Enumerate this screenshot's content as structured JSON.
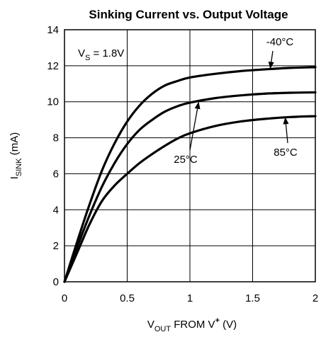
{
  "chart_data": {
    "type": "line",
    "title": "Sinking Current vs. Output Voltage",
    "xlabel": {
      "main": "V",
      "sub": "OUT",
      "rest": " FROM V",
      "sup": "+",
      "unit": " (V)"
    },
    "ylabel": {
      "main": "I",
      "sub": "SINK",
      "unit": " (mA)"
    },
    "xlim": [
      0,
      2
    ],
    "ylim": [
      0,
      14
    ],
    "xticks": [
      0,
      0.5,
      1,
      1.5,
      2
    ],
    "xtick_labels": [
      "0",
      "0.5",
      "1",
      "1.5",
      "2"
    ],
    "yticks": [
      0,
      2,
      4,
      6,
      8,
      10,
      12,
      14
    ],
    "ytick_labels": [
      "0",
      "2",
      "4",
      "6",
      "8",
      "10",
      "12",
      "14"
    ],
    "grid": true,
    "condition": {
      "main": "V",
      "sub": "S",
      "rest": " = 1.8V"
    },
    "series": [
      {
        "name": "-40°C",
        "x": [
          0,
          0.1,
          0.2,
          0.3,
          0.4,
          0.5,
          0.6,
          0.7,
          0.8,
          0.9,
          1.0,
          1.2,
          1.4,
          1.6,
          1.8,
          2.0
        ],
        "y": [
          0,
          2.2,
          4.3,
          6.2,
          7.7,
          8.9,
          9.8,
          10.45,
          10.9,
          11.15,
          11.35,
          11.55,
          11.7,
          11.8,
          11.88,
          11.92
        ]
      },
      {
        "name": "25°C",
        "x": [
          0,
          0.1,
          0.2,
          0.3,
          0.4,
          0.5,
          0.6,
          0.7,
          0.8,
          0.9,
          1.0,
          1.2,
          1.4,
          1.6,
          1.8,
          2.0
        ],
        "y": [
          0,
          1.9,
          3.7,
          5.3,
          6.6,
          7.65,
          8.45,
          9.0,
          9.45,
          9.75,
          9.95,
          10.2,
          10.35,
          10.45,
          10.5,
          10.52
        ]
      },
      {
        "name": "85°C",
        "x": [
          0,
          0.1,
          0.2,
          0.3,
          0.4,
          0.5,
          0.6,
          0.7,
          0.8,
          0.9,
          1.0,
          1.2,
          1.4,
          1.6,
          1.8,
          2.0
        ],
        "y": [
          0,
          1.6,
          3.2,
          4.5,
          5.35,
          6.0,
          6.6,
          7.1,
          7.55,
          7.95,
          8.25,
          8.65,
          8.9,
          9.05,
          9.15,
          9.2
        ]
      }
    ],
    "annotations": [
      {
        "text": "-40°C",
        "points_to": {
          "x": 1.64,
          "y": 11.82
        }
      },
      {
        "text": "25°C",
        "points_to": {
          "x": 1.07,
          "y": 10.0
        }
      },
      {
        "text": "85°C",
        "points_to": {
          "x": 1.76,
          "y": 9.15
        }
      }
    ]
  }
}
